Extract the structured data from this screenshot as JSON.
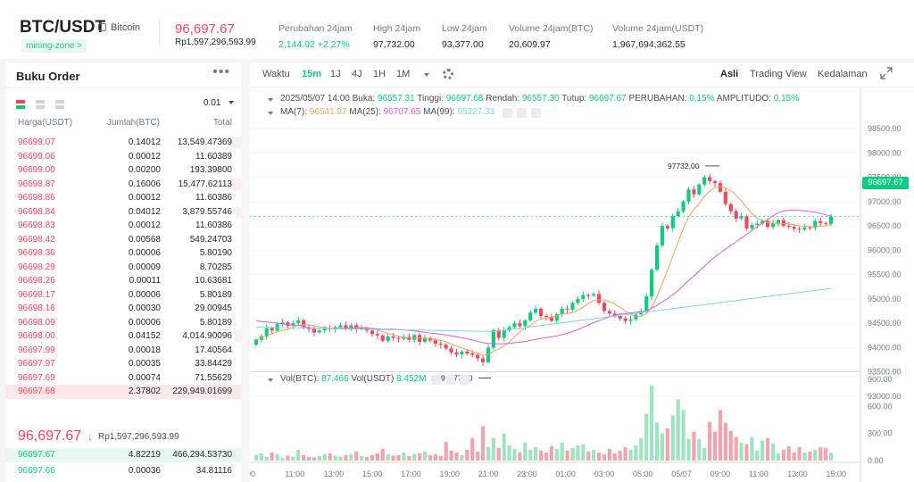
{
  "header": {
    "pair": "BTC/USDT",
    "coin_name": "Bitcoin",
    "zone_tag": "mining-zone >",
    "last_price": "96,697.67",
    "last_price_fiat": "Rp1,597,296,593.99",
    "stats": [
      {
        "label": "Perubahan 24jam",
        "value": "2,144.92 +2.27%",
        "tone": "up"
      },
      {
        "label": "High 24jam",
        "value": "97,732.00",
        "tone": "neutral"
      },
      {
        "label": "Low 24jam",
        "value": "93,377.00",
        "tone": "neutral"
      },
      {
        "label": "Volume 24jam(BTC)",
        "value": "20,609.97",
        "tone": "neutral"
      },
      {
        "label": "Volume 24jam(USDT)",
        "value": "1,967,694,362.55",
        "tone": "neutral"
      }
    ]
  },
  "orderbook": {
    "title": "Buku Order",
    "more_label": "•••",
    "precision": "0.01",
    "col_price": "Harga(USDT)",
    "col_amount": "Jumlah(BTC)",
    "col_total": "Total",
    "asks": [
      {
        "price": "96699.07",
        "amount": "0.14012",
        "total": "13,549.47369",
        "depth": 0.05
      },
      {
        "price": "96699.06",
        "amount": "0.00012",
        "total": "11.60389",
        "depth": 0
      },
      {
        "price": "96699.00",
        "amount": "0.00200",
        "total": "193.39800",
        "depth": 0
      },
      {
        "price": "96698.87",
        "amount": "0.16006",
        "total": "15,477.62113",
        "depth": 0.06
      },
      {
        "price": "96698.86",
        "amount": "0.00012",
        "total": "11.60386",
        "depth": 0
      },
      {
        "price": "96698.84",
        "amount": "0.04012",
        "total": "3,879.55746",
        "depth": 0.02
      },
      {
        "price": "96698.83",
        "amount": "0.00012",
        "total": "11.60386",
        "depth": 0
      },
      {
        "price": "96698.42",
        "amount": "0.00568",
        "total": "549.24703",
        "depth": 0
      },
      {
        "price": "96698.36",
        "amount": "0.00006",
        "total": "5.80190",
        "depth": 0
      },
      {
        "price": "96698.29",
        "amount": "0.00009",
        "total": "8.70285",
        "depth": 0
      },
      {
        "price": "96698.26",
        "amount": "0.00011",
        "total": "10.63681",
        "depth": 0
      },
      {
        "price": "96698.17",
        "amount": "0.00006",
        "total": "5.80189",
        "depth": 0
      },
      {
        "price": "96698.16",
        "amount": "0.00030",
        "total": "29.00945",
        "depth": 0
      },
      {
        "price": "96698.09",
        "amount": "0.00006",
        "total": "5.80189",
        "depth": 0
      },
      {
        "price": "96698.00",
        "amount": "0.04152",
        "total": "4,014.90096",
        "depth": 0.02
      },
      {
        "price": "96697.99",
        "amount": "0.00018",
        "total": "17.40564",
        "depth": 0
      },
      {
        "price": "96697.97",
        "amount": "0.00035",
        "total": "33.84429",
        "depth": 0
      },
      {
        "price": "96697.69",
        "amount": "0.00074",
        "total": "71.55629",
        "depth": 0
      },
      {
        "price": "96697.68",
        "amount": "2.37802",
        "total": "229,949.01699",
        "depth": 1
      }
    ],
    "mid_price": "96,697.67",
    "mid_arrow": "↓",
    "mid_fiat": "Rp1,597,296,593.99",
    "bids": [
      {
        "price": "96697.67",
        "amount": "4.82219",
        "total": "466,294.53730"
      },
      {
        "price": "96697.66",
        "amount": "0.00036",
        "total": "34.81116"
      }
    ]
  },
  "toolbar": {
    "intervals": [
      "Waktu",
      "15m",
      "1J",
      "4J",
      "1H",
      "1M"
    ],
    "active_interval": "15m",
    "views": [
      "Asli",
      "Trading View",
      "Kedalaman"
    ],
    "active_view": "Asli"
  },
  "legend": {
    "date": "2025/05/07 14:00",
    "open_label": "Buka:",
    "open": "96557.31",
    "high_label": "Tinggi:",
    "high": "96697.68",
    "low_label": "Rendah:",
    "low": "96557.30",
    "close_label": "Tutup:",
    "close": "96697.67",
    "change_label": "PERUBAHAN:",
    "change": "0.15%",
    "amp_label": "AMPLITUDO:",
    "amp": "0.15%",
    "ma7_label": "MA(7):",
    "ma7": "96541.97",
    "ma25_label": "MA(25):",
    "ma25": "96707.65",
    "ma99_label": "MA(99):",
    "ma99": "95227.33",
    "vol_btc_label": "Vol(BTC):",
    "vol_btc": "87.466",
    "vol_usdt_label": "Vol(USDT)",
    "vol_usdt": "8.452M"
  },
  "colors": {
    "up": "#0ecb81",
    "down": "#f6465d",
    "ma7": "#f0a15a",
    "ma25": "#d85ed8",
    "ma99": "#7fd3e8"
  },
  "chart_data": {
    "type": "candlestick",
    "price_axis": [
      "98500.00",
      "98000.00",
      "97500.00",
      "97000.00",
      "96500.00",
      "96000.00",
      "95500.00",
      "95000.00",
      "94500.00",
      "94000.00",
      "93500.00",
      "93000.00"
    ],
    "volume_axis": [
      "900.00",
      "600.00",
      "300.00",
      "0.00"
    ],
    "time_axis": [
      "00",
      "11:00",
      "13:00",
      "15:00",
      "17:00",
      "19:00",
      "21:00",
      "23:00",
      "01:00",
      "03:00",
      "05:00",
      "05/07",
      "09:00",
      "11:00",
      "13:00",
      "15:00"
    ],
    "ylim": [
      93000,
      98500
    ],
    "volume_ylim": [
      0,
      900
    ],
    "current_price_tag": "96697.67",
    "high_marker": "97732.00",
    "low_marker": "93377.00",
    "closes": [
      94160,
      94230,
      94400,
      94350,
      94480,
      94520,
      94450,
      94500,
      94560,
      94420,
      94380,
      94310,
      94350,
      94400,
      94380,
      94420,
      94460,
      94400,
      94460,
      94380,
      94400,
      94350,
      94280,
      94250,
      94140,
      94230,
      94200,
      94180,
      94220,
      94160,
      94260,
      94120,
      94200,
      94150,
      94080,
      94060,
      93980,
      93900,
      93860,
      93920,
      93880,
      93850,
      93780,
      93700,
      94000,
      94360,
      94200,
      94350,
      94420,
      94500,
      94440,
      94560,
      94720,
      94800,
      94650,
      94630,
      94550,
      94690,
      94800,
      94780,
      94920,
      95000,
      95080,
      95070,
      95100,
      94920,
      94750,
      94700,
      94650,
      94600,
      94550,
      94580,
      94680,
      94750,
      95050,
      95600,
      96100,
      96500,
      96450,
      96700,
      96800,
      97000,
      97250,
      97150,
      97350,
      97500,
      97420,
      97380,
      97200,
      96950,
      96800,
      96650,
      96700,
      96450,
      96520,
      96550,
      96600,
      96480,
      96560,
      96620,
      96500,
      96480,
      96440,
      96430,
      96470,
      96460,
      96600,
      96560,
      96540,
      96697
    ],
    "volumes": [
      60,
      80,
      40,
      90,
      70,
      30,
      55,
      45,
      120,
      60,
      40,
      35,
      50,
      70,
      80,
      55,
      45,
      60,
      70,
      100,
      50,
      40,
      60,
      80,
      130,
      70,
      55,
      60,
      90,
      50,
      75,
      80,
      100,
      60,
      70,
      50,
      210,
      110,
      90,
      60,
      120,
      250,
      100,
      380,
      150,
      250,
      140,
      300,
      170,
      130,
      90,
      200,
      120,
      150,
      110,
      90,
      160,
      130,
      200,
      110,
      140,
      170,
      180,
      100,
      120,
      90,
      70,
      130,
      80,
      110,
      150,
      120,
      170,
      250,
      520,
      830,
      420,
      300,
      360,
      500,
      680,
      560,
      240,
      320,
      240,
      140,
      430,
      320,
      560,
      420,
      330,
      260,
      200,
      180,
      260,
      110,
      220,
      250,
      190,
      80,
      120,
      160,
      90,
      150,
      90,
      100,
      120,
      150,
      140,
      87
    ]
  }
}
